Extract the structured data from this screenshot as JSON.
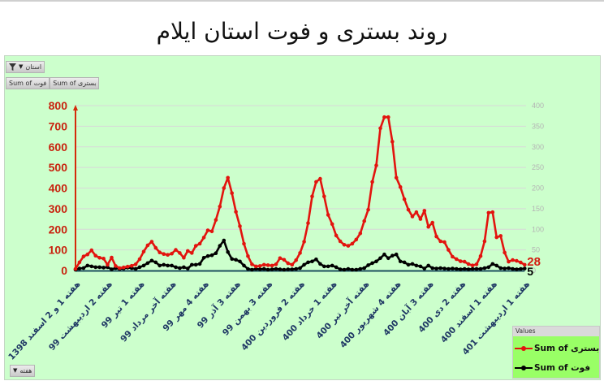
{
  "title": "روند بستری و فوت استان ایلام",
  "pivot": {
    "report_filter_label": "استان",
    "value_fields": [
      "Sum of فوت",
      "Sum of بستری"
    ],
    "axis_field_label": "هفته"
  },
  "legend": {
    "header": "Values",
    "items": [
      {
        "label": "Sum of بستری",
        "color": "#e2140e"
      },
      {
        "label": "Sum of فوت",
        "color": "#000000"
      }
    ]
  },
  "chart_data": {
    "type": "line",
    "title": "روند بستری و فوت استان ایلام",
    "xlabel": "هفته",
    "ylabel": "",
    "background": "#ccffcc",
    "grid": true,
    "legend_position": "bottom-right",
    "y_axis": {
      "min": 0,
      "max": 800,
      "step": 100,
      "color": "#c8230f"
    },
    "y2_axis": {
      "min": 0,
      "max": 400,
      "step": 50,
      "color": "#b4b4b4"
    },
    "n_points": 113,
    "tick_every": 8,
    "x_tick_labels": [
      "هفته 1 و 2 اسفند 1398",
      "هفته 2 اردیبهشت 99",
      "هفته 1 تیر 99",
      "هفته آخر مرداد 99",
      "هفته 4 مهر 99",
      "هفته 3 آذر 99",
      "هفته 3 بهمن 99",
      "هفته 2 فروردین 400",
      "هفته 1 خرداد 400",
      "هفته آخر تیر 400",
      "هفته 4 شهریور 400",
      "هفته 3 آبان 400",
      "هفته 2 دی 400",
      "هفته 1 اسفند 400",
      "هفته 1 اردیبهشت 401"
    ],
    "series": [
      {
        "name": "Sum of بستری",
        "axis": "primary",
        "color": "#e2140e",
        "values": [
          8,
          40,
          68,
          78,
          98,
          72,
          62,
          58,
          28,
          63,
          22,
          12,
          15,
          19,
          23,
          30,
          55,
          92,
          122,
          140,
          110,
          88,
          80,
          76,
          82,
          100,
          85,
          62,
          95,
          85,
          120,
          130,
          160,
          195,
          190,
          245,
          310,
          400,
          450,
          375,
          285,
          215,
          130,
          70,
          30,
          20,
          22,
          28,
          26,
          24,
          30,
          60,
          52,
          35,
          28,
          50,
          85,
          140,
          230,
          360,
          430,
          445,
          360,
          270,
          225,
          170,
          142,
          125,
          120,
          130,
          150,
          180,
          240,
          295,
          430,
          510,
          690,
          744,
          744,
          625,
          450,
          405,
          346,
          295,
          262,
          283,
          250,
          290,
          212,
          232,
          165,
          142,
          138,
          100,
          67,
          55,
          45,
          43,
          31,
          25,
          30,
          70,
          142,
          280,
          283,
          161,
          168,
          87,
          43,
          51,
          47,
          39,
          28
        ]
      },
      {
        "name": "Sum of فوت",
        "axis": "secondary",
        "color": "#000000",
        "values": [
          2,
          5,
          6,
          12,
          10,
          8,
          8,
          7,
          8,
          3,
          6,
          4,
          5,
          7,
          6,
          4,
          8,
          12,
          18,
          24,
          20,
          12,
          14,
          12,
          12,
          8,
          6,
          8,
          5,
          14,
          14,
          16,
          31,
          35,
          37,
          42,
          60,
          73,
          45,
          28,
          26,
          22,
          12,
          4,
          2,
          4,
          3,
          4,
          2,
          3,
          4,
          3,
          2,
          3,
          3,
          4,
          6,
          14,
          20,
          22,
          27,
          16,
          10,
          10,
          12,
          8,
          3,
          2,
          4,
          2,
          2,
          4,
          6,
          13,
          18,
          22,
          30,
          39,
          30,
          36,
          39,
          22,
          20,
          14,
          16,
          12,
          10,
          5,
          12,
          6,
          5,
          6,
          5,
          4,
          5,
          4,
          3,
          4,
          3,
          4,
          4,
          4,
          6,
          8,
          16,
          12,
          6,
          5,
          6,
          4,
          3,
          4,
          5
        ]
      }
    ],
    "data_labels": [
      {
        "series": 0,
        "index": 112,
        "text": "28"
      },
      {
        "series": 1,
        "index": 112,
        "text": "5"
      }
    ]
  }
}
